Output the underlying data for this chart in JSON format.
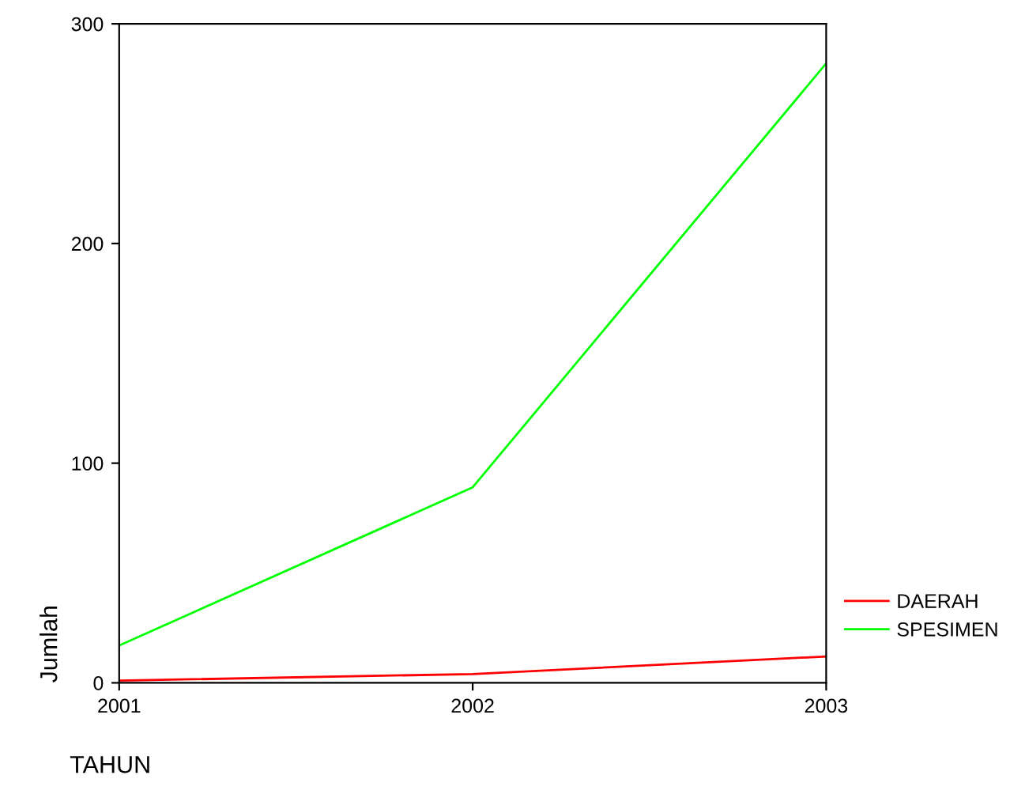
{
  "chart_data": {
    "type": "line",
    "xlabel": "TAHUN",
    "ylabel": "Jumlah",
    "x": [
      2001,
      2002,
      2003
    ],
    "series": [
      {
        "name": "DAERAH",
        "color": "#ff0000",
        "values": [
          1,
          4,
          12
        ]
      },
      {
        "name": "SPESIMEN",
        "color": "#00ff00",
        "values": [
          17,
          89,
          282
        ]
      }
    ],
    "xlim": [
      2001,
      2003
    ],
    "ylim": [
      0,
      300
    ],
    "xticks": [
      2001,
      2002,
      2003
    ],
    "yticks": [
      0,
      100,
      200,
      300
    ],
    "grid": false,
    "legend": "right",
    "marker": "none",
    "line_style": "solid"
  }
}
